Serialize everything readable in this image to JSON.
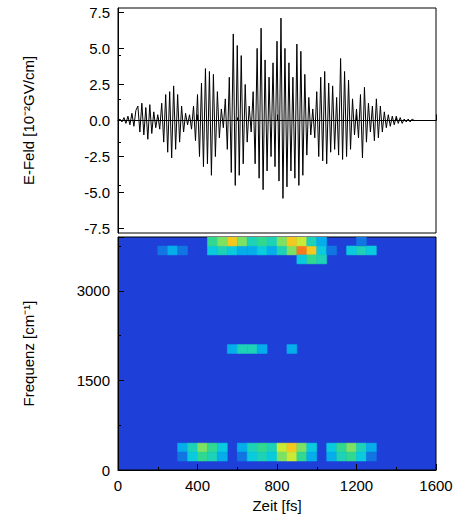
{
  "chart_data": [
    {
      "type": "line",
      "y_label": "E-Feld [10⁻²GV/cm]",
      "x": [
        0,
        10,
        20,
        30,
        40,
        50,
        60,
        70,
        80,
        90,
        100,
        110,
        120,
        130,
        140,
        150,
        160,
        170,
        180,
        190,
        200,
        210,
        220,
        230,
        240,
        250,
        260,
        270,
        280,
        290,
        300,
        310,
        320,
        330,
        340,
        350,
        360,
        370,
        380,
        390,
        400,
        410,
        420,
        430,
        440,
        450,
        460,
        470,
        480,
        490,
        500,
        510,
        520,
        530,
        540,
        550,
        560,
        570,
        580,
        590,
        600,
        610,
        620,
        630,
        640,
        650,
        660,
        670,
        680,
        690,
        700,
        710,
        720,
        730,
        740,
        750,
        760,
        770,
        780,
        790,
        800,
        810,
        820,
        830,
        840,
        850,
        860,
        870,
        880,
        890,
        900,
        910,
        920,
        930,
        940,
        950,
        960,
        970,
        980,
        990,
        1000,
        1010,
        1020,
        1030,
        1040,
        1050,
        1060,
        1070,
        1080,
        1090,
        1100,
        1110,
        1120,
        1130,
        1140,
        1150,
        1160,
        1170,
        1180,
        1190,
        1200,
        1210,
        1220,
        1230,
        1240,
        1250,
        1260,
        1270,
        1280,
        1290,
        1300,
        1310,
        1320,
        1330,
        1340,
        1350,
        1360,
        1370,
        1380,
        1390,
        1400,
        1410,
        1420,
        1430,
        1440,
        1450,
        1460,
        1470,
        1480,
        1490,
        1500,
        1510,
        1520,
        1530,
        1540,
        1550,
        1560,
        1570,
        1580,
        1590,
        1600
      ],
      "values": [
        0,
        0.1,
        -0.1,
        0.2,
        -0.2,
        0.3,
        -0.3,
        0.5,
        -0.4,
        0.7,
        1.0,
        -0.8,
        1.2,
        -1.0,
        0.9,
        -1.3,
        1.1,
        -0.9,
        0.6,
        -0.5,
        0.4,
        -0.6,
        1.2,
        -1.5,
        1.8,
        -2.2,
        2.0,
        -2.6,
        2.4,
        -2.0,
        1.8,
        -1.5,
        1.0,
        -0.8,
        0.5,
        -0.3,
        0.4,
        -0.6,
        1.0,
        -1.4,
        1.8,
        -2.5,
        2.6,
        -3.2,
        3.6,
        -3.0,
        3.4,
        -3.8,
        3.2,
        -2.5,
        2.0,
        -1.2,
        0.8,
        -0.5,
        1.5,
        -2.0,
        3.0,
        -3.6,
        6.0,
        -4.5,
        5.2,
        -3.8,
        4.5,
        -3.0,
        2.5,
        -1.5,
        1.0,
        -0.8,
        2.0,
        -3.0,
        5.0,
        -4.0,
        6.4,
        -4.8,
        4.2,
        -3.5,
        3.0,
        -2.5,
        4.0,
        -3.2,
        5.5,
        -4.2,
        7.1,
        -5.4,
        5.0,
        -4.6,
        4.0,
        -3.5,
        3.0,
        -4.0,
        5.3,
        -4.5,
        4.8,
        -3.8,
        3.2,
        -2.4,
        1.6,
        -1.0,
        0.8,
        -1.2,
        2.0,
        -2.5,
        3.0,
        -2.8,
        3.4,
        -3.0,
        2.6,
        -2.2,
        2.4,
        -2.0,
        1.6,
        -2.4,
        4.3,
        -2.7,
        3.4,
        -2.5,
        2.8,
        -2.0,
        1.5,
        -1.0,
        0.8,
        -1.2,
        1.8,
        -2.6,
        2.3,
        -1.5,
        1.2,
        -0.8,
        1.0,
        -1.4,
        1.5,
        -1.2,
        1.0,
        -0.8,
        0.6,
        -0.5,
        0.4,
        -0.4,
        0.3,
        -0.3,
        0.3,
        -0.2,
        0.2,
        -0.2,
        0.1,
        -0.1,
        0.1,
        -0.1,
        0.1,
        0,
        0,
        0,
        0,
        0,
        0,
        0,
        0,
        0,
        0,
        0,
        0
      ],
      "color": "#000000",
      "xlim": [
        0,
        1600
      ],
      "xticks": [
        0,
        400,
        800,
        1200,
        1600
      ],
      "ylim": [
        -7.8,
        7.8
      ],
      "yticks": [
        -7.5,
        {
          "value": -5,
          "label": "-5.0"
        },
        -2.5,
        {
          "value": 0,
          "label": "0.0"
        },
        2.5,
        {
          "value": 5,
          "label": "5.0"
        },
        7.5
      ],
      "tick_labels": "y"
    },
    {
      "type": "heatmap",
      "x_label": "Zeit [fs]",
      "y_label": "Frequenz [cm⁻¹]",
      "cell_size": [
        50,
        150
      ],
      "zlim": [
        0,
        10
      ],
      "cells": [
        [
          300,
          300,
          2
        ],
        [
          350,
          300,
          4
        ],
        [
          400,
          300,
          6
        ],
        [
          450,
          300,
          5
        ],
        [
          500,
          300,
          3
        ],
        [
          300,
          150,
          1
        ],
        [
          350,
          150,
          3
        ],
        [
          400,
          150,
          5
        ],
        [
          450,
          150,
          4
        ],
        [
          500,
          150,
          2
        ],
        [
          600,
          300,
          2
        ],
        [
          650,
          300,
          4
        ],
        [
          700,
          300,
          5
        ],
        [
          750,
          300,
          4
        ],
        [
          800,
          300,
          7
        ],
        [
          850,
          300,
          8
        ],
        [
          900,
          300,
          6
        ],
        [
          950,
          300,
          3
        ],
        [
          600,
          150,
          1
        ],
        [
          650,
          150,
          3
        ],
        [
          700,
          150,
          4
        ],
        [
          750,
          150,
          3
        ],
        [
          800,
          150,
          6
        ],
        [
          850,
          150,
          7
        ],
        [
          900,
          150,
          5
        ],
        [
          950,
          150,
          2
        ],
        [
          1050,
          300,
          3
        ],
        [
          1100,
          300,
          5
        ],
        [
          1150,
          300,
          6
        ],
        [
          1200,
          300,
          4
        ],
        [
          1250,
          300,
          2
        ],
        [
          1050,
          150,
          2
        ],
        [
          1100,
          150,
          4
        ],
        [
          1150,
          150,
          5
        ],
        [
          1200,
          150,
          3
        ],
        [
          1250,
          150,
          1
        ],
        [
          550,
          1950,
          2
        ],
        [
          600,
          1950,
          4
        ],
        [
          650,
          1950,
          4
        ],
        [
          700,
          1950,
          2
        ],
        [
          850,
          1950,
          2
        ],
        [
          200,
          3600,
          1
        ],
        [
          250,
          3600,
          2
        ],
        [
          300,
          3600,
          1
        ],
        [
          450,
          3600,
          3
        ],
        [
          500,
          3600,
          4
        ],
        [
          550,
          3600,
          3
        ],
        [
          600,
          3600,
          2
        ],
        [
          650,
          3600,
          2
        ],
        [
          700,
          3600,
          3
        ],
        [
          750,
          3600,
          2
        ],
        [
          800,
          3600,
          4
        ],
        [
          850,
          3600,
          6
        ],
        [
          900,
          3600,
          9
        ],
        [
          950,
          3600,
          8
        ],
        [
          1000,
          3600,
          3
        ],
        [
          1050,
          3600,
          1
        ],
        [
          1150,
          3600,
          3
        ],
        [
          1200,
          3600,
          4
        ],
        [
          1250,
          3600,
          3
        ],
        [
          450,
          3750,
          5
        ],
        [
          500,
          3750,
          6
        ],
        [
          550,
          3750,
          8
        ],
        [
          600,
          3750,
          6
        ],
        [
          650,
          3750,
          4
        ],
        [
          700,
          3750,
          5
        ],
        [
          750,
          3750,
          4
        ],
        [
          800,
          3750,
          6
        ],
        [
          850,
          3750,
          8
        ],
        [
          900,
          3750,
          7
        ],
        [
          950,
          3750,
          4
        ],
        [
          1000,
          3750,
          2
        ],
        [
          1200,
          3750,
          1
        ],
        [
          900,
          3450,
          3
        ],
        [
          950,
          3450,
          5
        ],
        [
          1000,
          3450,
          4
        ]
      ],
      "xlim": [
        0,
        1600
      ],
      "xticks": [
        0,
        400,
        800,
        1200,
        1600
      ],
      "ylim": [
        0,
        3900
      ],
      "yticks": [
        0,
        1500,
        3000
      ]
    }
  ]
}
